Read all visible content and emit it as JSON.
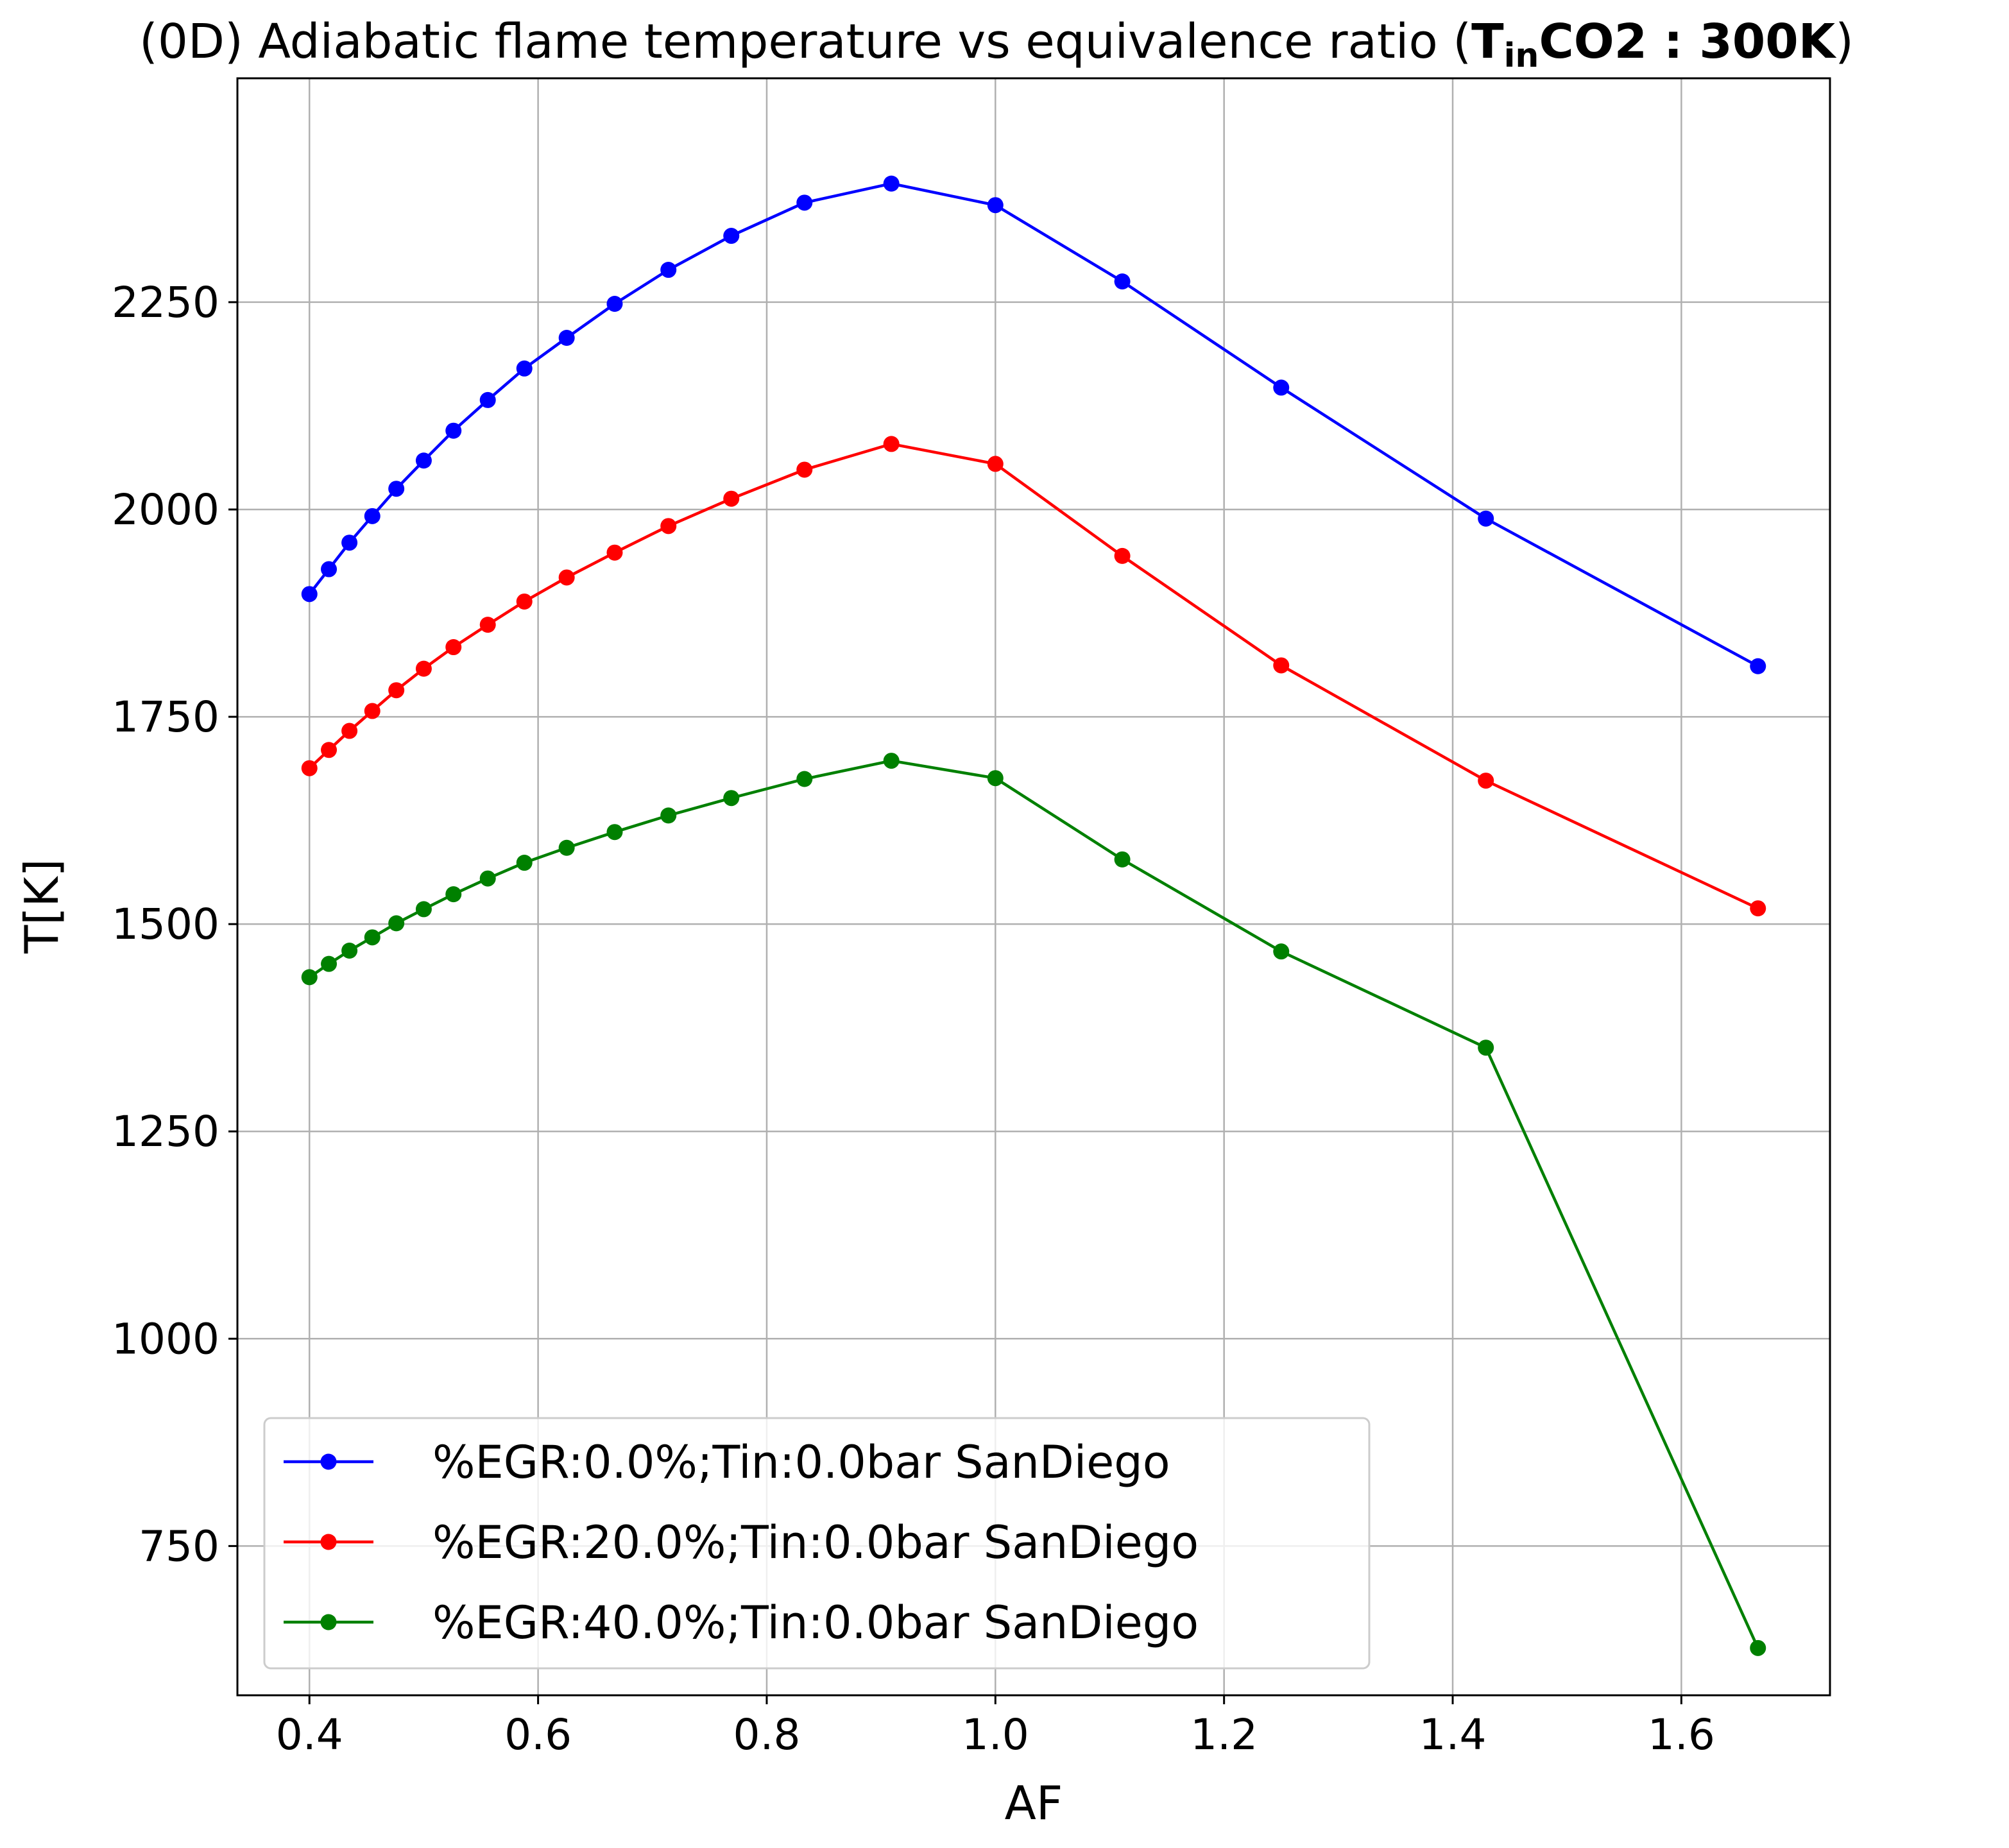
{
  "chart_data": {
    "type": "line",
    "title": {
      "prefix": "(0D) Adiabatic flame temperature vs equivalence ratio (",
      "bold_main": "T",
      "bold_sub": "in",
      "bold_rest": "CO2 : 300K",
      "suffix": ")"
    },
    "xlabel": "AF",
    "ylabel": "T[K]",
    "xlim": [
      0.337,
      1.73
    ],
    "ylim": [
      570,
      2520
    ],
    "xticks": [
      0.4,
      0.6,
      0.8,
      1.0,
      1.2,
      1.4,
      1.6
    ],
    "xtick_labels": [
      "0.4",
      "0.6",
      "0.8",
      "1.0",
      "1.2",
      "1.4",
      "1.6"
    ],
    "yticks": [
      750,
      1000,
      1250,
      1500,
      1750,
      2000,
      2250
    ],
    "ytick_labels": [
      "750",
      "1000",
      "1250",
      "1500",
      "1750",
      "2000",
      "2250"
    ],
    "grid": true,
    "legend_position": "lower-left",
    "x": [
      0.4,
      0.417,
      0.435,
      0.455,
      0.476,
      0.5,
      0.526,
      0.556,
      0.588,
      0.625,
      0.667,
      0.714,
      0.769,
      0.833,
      0.909,
      1.0,
      1.111,
      1.25,
      1.429,
      1.667
    ],
    "series": [
      {
        "name": "%EGR:0.0%;Tin:0.0bar SanDiego",
        "color": "#0000ff",
        "values": [
          1898,
          1928,
          1960,
          1992,
          2025,
          2059,
          2095,
          2132,
          2170,
          2207,
          2248,
          2289,
          2330,
          2370,
          2393,
          2367,
          2275,
          2147,
          1989,
          1811
        ]
      },
      {
        "name": "%EGR:20.0%;Tin:0.0bar SanDiego",
        "color": "#ff0000",
        "values": [
          1688,
          1710,
          1733,
          1757,
          1782,
          1808,
          1834,
          1861,
          1889,
          1918,
          1948,
          1980,
          2013,
          2048,
          2079,
          2055,
          1944,
          1812,
          1673,
          1519
        ]
      },
      {
        "name": "%EGR:40.0%;Tin:0.0bar SanDiego",
        "color": "#008000",
        "values": [
          1436,
          1452,
          1468,
          1484,
          1501,
          1518,
          1536,
          1555,
          1574,
          1592,
          1611,
          1631,
          1652,
          1675,
          1697,
          1676,
          1578,
          1467,
          1351,
          627
        ]
      }
    ]
  }
}
